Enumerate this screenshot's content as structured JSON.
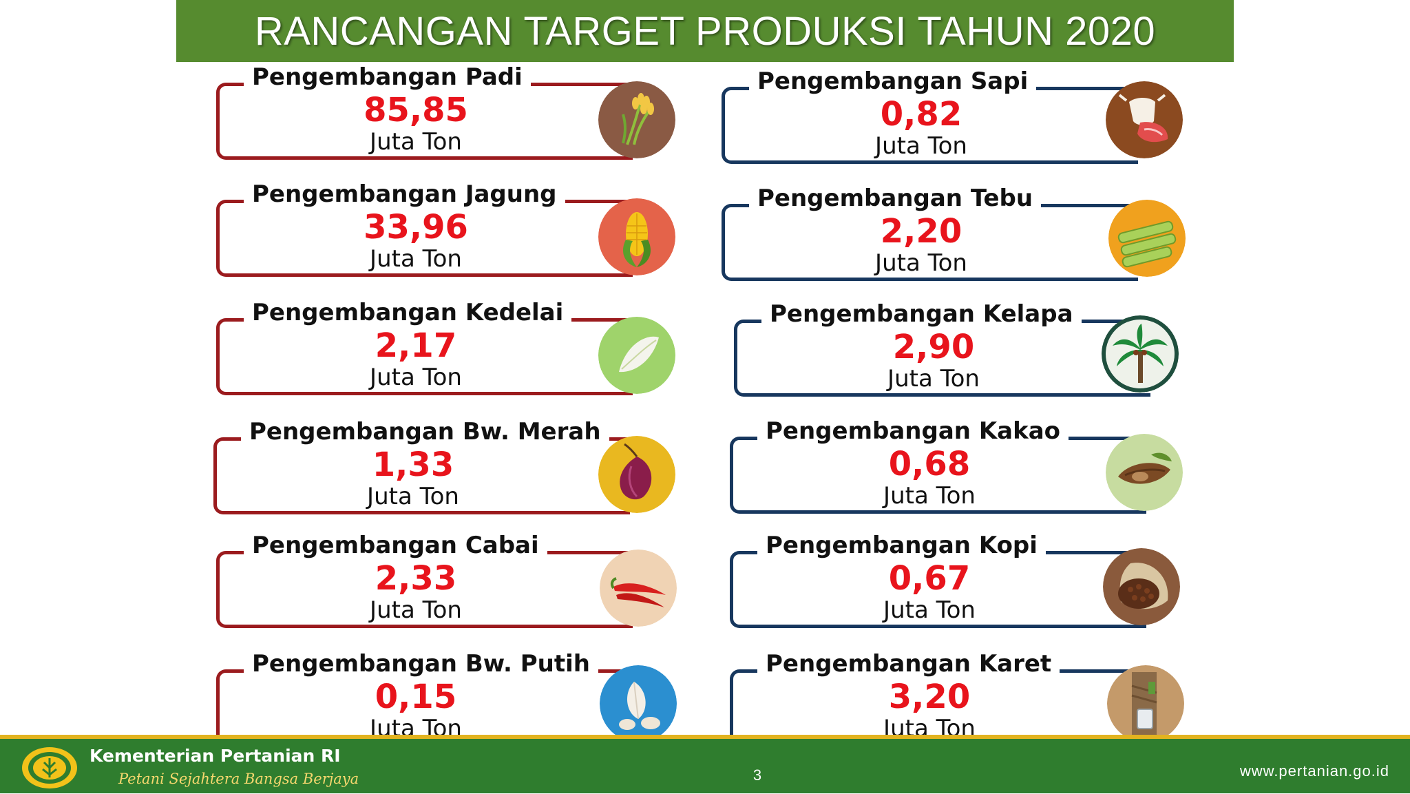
{
  "title": "RANCANGAN TARGET PRODUKSI TAHUN 2020",
  "left_column": [
    {
      "label": "Pengembangan Padi",
      "value": "85,85",
      "unit": "Juta Ton",
      "icon": "rice-icon"
    },
    {
      "label": "Pengembangan Jagung",
      "value": "33,96",
      "unit": "Juta Ton",
      "icon": "corn-icon"
    },
    {
      "label": "Pengembangan Kedelai",
      "value": "2,17",
      "unit": "Juta Ton",
      "icon": "soybean-icon"
    },
    {
      "label": "Pengembangan Bw. Merah",
      "value": "1,33",
      "unit": "Juta Ton",
      "icon": "shallot-icon"
    },
    {
      "label": "Pengembangan Cabai",
      "value": "2,33",
      "unit": "Juta Ton",
      "icon": "chili-icon"
    },
    {
      "label": "Pengembangan Bw. Putih",
      "value": "0,15",
      "unit": "Juta Ton",
      "icon": "garlic-icon"
    }
  ],
  "right_column": [
    {
      "label": "Pengembangan Sapi",
      "value": "0,82",
      "unit": "Juta Ton",
      "icon": "cattle-icon"
    },
    {
      "label": "Pengembangan Tebu",
      "value": "2,20",
      "unit": "Juta Ton",
      "icon": "sugarcane-icon"
    },
    {
      "label": "Pengembangan Kelapa",
      "value": "2,90",
      "unit": "Juta Ton",
      "icon": "coconut-palm-icon"
    },
    {
      "label": "Pengembangan Kakao",
      "value": "0,68",
      "unit": "Juta Ton",
      "icon": "cocoa-icon"
    },
    {
      "label": "Pengembangan Kopi",
      "value": "0,67",
      "unit": "Juta Ton",
      "icon": "coffee-icon"
    },
    {
      "label": "Pengembangan Karet",
      "value": "3,20",
      "unit": "Juta Ton",
      "icon": "rubber-icon"
    }
  ],
  "footer": {
    "ministry": "Kementerian Pertanian RI",
    "tagline": "Petani Sejahtera Bangsa Berjaya",
    "page_number": "3",
    "website": "www.pertanian.go.id"
  },
  "colors": {
    "title_bg": "#568b2f",
    "left_frame": "#9b1b1e",
    "right_frame": "#17375e",
    "value_text": "#e8141c",
    "footer_bg": "#2f7d2e",
    "footer_stripe": "#e2b31f"
  }
}
